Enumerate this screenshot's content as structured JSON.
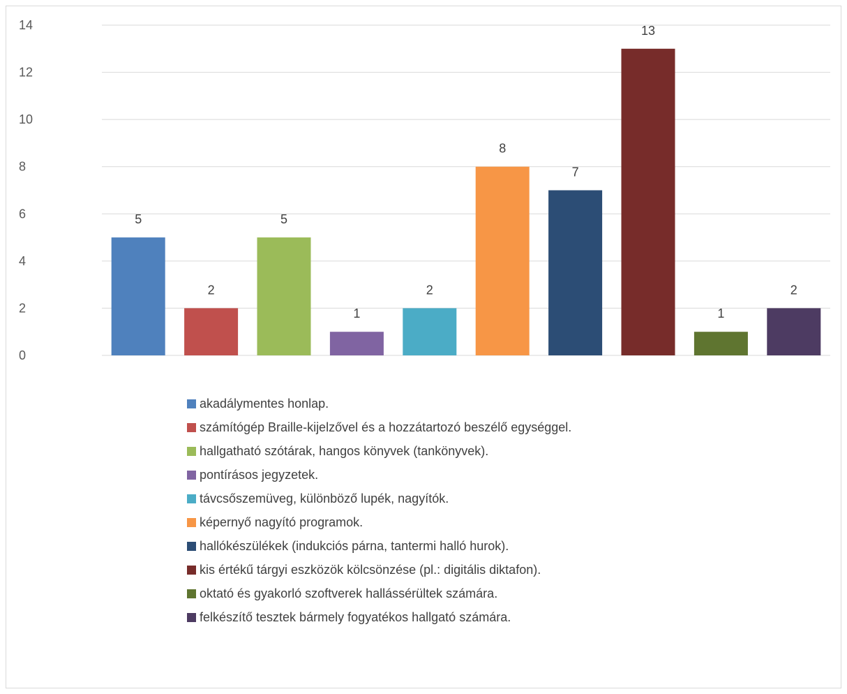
{
  "chart_data": {
    "type": "bar",
    "title": "",
    "xlabel": "",
    "ylabel": "",
    "ylim": [
      0,
      14
    ],
    "yticks": [
      0,
      2,
      4,
      6,
      8,
      10,
      12,
      14
    ],
    "grid": true,
    "legend_position": "bottom",
    "categories": [
      "akadálymentes honlap.",
      "számítógép Braille-kijelzővel és a hozzátartozó beszélő egységgel.",
      "hallgatható szótárak, hangos könyvek (tankönyvek).",
      "pontírásos jegyzetek.",
      "távcsőszemüveg, különböző lupék, nagyítók.",
      "képernyő nagyító programok.",
      "hallókészülékek (indukciós párna, tantermi halló hurok).",
      "kis értékű tárgyi eszközök kölcsönzése (pl.: digitális diktafon).",
      "oktató és gyakorló szoftverek hallássérültek számára.",
      "felkészítő tesztek bármely fogyatékos hallgató számára."
    ],
    "values": [
      5,
      2,
      5,
      1,
      2,
      8,
      7,
      13,
      1,
      2
    ],
    "data_labels": [
      "5",
      "2",
      "5",
      "1",
      "2",
      "8",
      "7",
      "13",
      "1",
      "2"
    ],
    "colors": [
      "#4f81bd",
      "#c0504d",
      "#9bbb59",
      "#8064a2",
      "#4bacc6",
      "#f79646",
      "#2c4d75",
      "#772c2a",
      "#5f7530",
      "#4d3b62"
    ]
  }
}
